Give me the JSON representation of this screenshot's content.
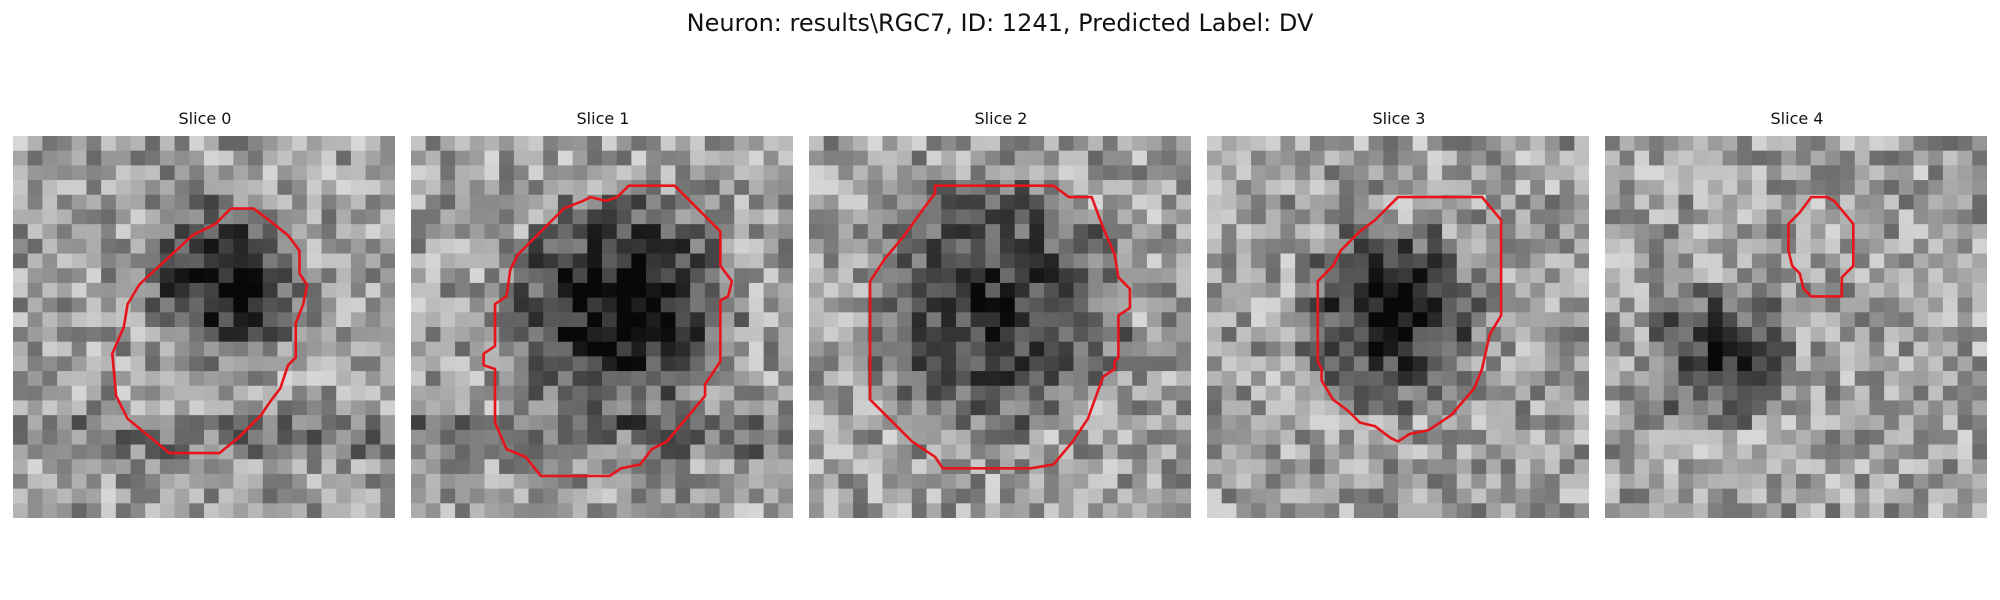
{
  "figure": {
    "title": "Neuron: results\\RGC7, ID: 1241, Predicted Label: DV"
  },
  "contour_color": "#e8141c",
  "panels": [
    {
      "title": "Slice 0",
      "seed": 11,
      "dark_center": [
        0.55,
        0.38
      ],
      "dark_radius": 0.22,
      "dark_strength": 0.65,
      "band": true,
      "contour": [
        [
          0.57,
          0.19
        ],
        [
          0.63,
          0.19
        ],
        [
          0.67,
          0.22
        ],
        [
          0.72,
          0.26
        ],
        [
          0.75,
          0.3
        ],
        [
          0.75,
          0.36
        ],
        [
          0.77,
          0.39
        ],
        [
          0.76,
          0.44
        ],
        [
          0.74,
          0.49
        ],
        [
          0.74,
          0.58
        ],
        [
          0.72,
          0.6
        ],
        [
          0.7,
          0.66
        ],
        [
          0.67,
          0.7
        ],
        [
          0.65,
          0.73
        ],
        [
          0.59,
          0.79
        ],
        [
          0.54,
          0.83
        ],
        [
          0.41,
          0.83
        ],
        [
          0.3,
          0.74
        ],
        [
          0.27,
          0.68
        ],
        [
          0.26,
          0.57
        ],
        [
          0.29,
          0.5
        ],
        [
          0.3,
          0.44
        ],
        [
          0.33,
          0.39
        ],
        [
          0.34,
          0.38
        ],
        [
          0.47,
          0.26
        ],
        [
          0.53,
          0.23
        ]
      ]
    },
    {
      "title": "Slice 1",
      "seed": 23,
      "dark_center": [
        0.55,
        0.45
      ],
      "dark_radius": 0.32,
      "dark_strength": 0.7,
      "band": true,
      "contour": [
        [
          0.57,
          0.13
        ],
        [
          0.69,
          0.13
        ],
        [
          0.75,
          0.19
        ],
        [
          0.81,
          0.25
        ],
        [
          0.81,
          0.34
        ],
        [
          0.84,
          0.38
        ],
        [
          0.83,
          0.42
        ],
        [
          0.81,
          0.43
        ],
        [
          0.81,
          0.59
        ],
        [
          0.77,
          0.65
        ],
        [
          0.77,
          0.68
        ],
        [
          0.72,
          0.74
        ],
        [
          0.67,
          0.8
        ],
        [
          0.63,
          0.82
        ],
        [
          0.6,
          0.86
        ],
        [
          0.55,
          0.87
        ],
        [
          0.52,
          0.89
        ],
        [
          0.34,
          0.89
        ],
        [
          0.3,
          0.84
        ],
        [
          0.25,
          0.82
        ],
        [
          0.22,
          0.75
        ],
        [
          0.22,
          0.61
        ],
        [
          0.19,
          0.6
        ],
        [
          0.19,
          0.57
        ],
        [
          0.22,
          0.55
        ],
        [
          0.22,
          0.44
        ],
        [
          0.25,
          0.42
        ],
        [
          0.26,
          0.35
        ],
        [
          0.28,
          0.31
        ],
        [
          0.34,
          0.25
        ],
        [
          0.4,
          0.19
        ],
        [
          0.45,
          0.17
        ],
        [
          0.47,
          0.16
        ],
        [
          0.51,
          0.17
        ],
        [
          0.54,
          0.16
        ]
      ]
    },
    {
      "title": "Slice 2",
      "seed": 37,
      "dark_center": [
        0.5,
        0.45
      ],
      "dark_radius": 0.36,
      "dark_strength": 0.45,
      "band": false,
      "contour": [
        [
          0.33,
          0.13
        ],
        [
          0.64,
          0.13
        ],
        [
          0.68,
          0.16
        ],
        [
          0.74,
          0.16
        ],
        [
          0.77,
          0.24
        ],
        [
          0.8,
          0.31
        ],
        [
          0.81,
          0.37
        ],
        [
          0.84,
          0.4
        ],
        [
          0.84,
          0.45
        ],
        [
          0.81,
          0.47
        ],
        [
          0.81,
          0.58
        ],
        [
          0.8,
          0.59
        ],
        [
          0.8,
          0.61
        ],
        [
          0.77,
          0.63
        ],
        [
          0.73,
          0.74
        ],
        [
          0.69,
          0.8
        ],
        [
          0.64,
          0.86
        ],
        [
          0.58,
          0.87
        ],
        [
          0.5,
          0.87
        ],
        [
          0.42,
          0.87
        ],
        [
          0.35,
          0.87
        ],
        [
          0.33,
          0.84
        ],
        [
          0.27,
          0.8
        ],
        [
          0.2,
          0.73
        ],
        [
          0.16,
          0.69
        ],
        [
          0.16,
          0.38
        ],
        [
          0.2,
          0.32
        ],
        [
          0.25,
          0.26
        ],
        [
          0.3,
          0.19
        ],
        [
          0.33,
          0.15
        ]
      ]
    },
    {
      "title": "Slice 3",
      "seed": 53,
      "dark_center": [
        0.48,
        0.47
      ],
      "dark_radius": 0.26,
      "dark_strength": 0.65,
      "band": false,
      "contour": [
        [
          0.5,
          0.16
        ],
        [
          0.72,
          0.16
        ],
        [
          0.77,
          0.22
        ],
        [
          0.77,
          0.47
        ],
        [
          0.74,
          0.52
        ],
        [
          0.72,
          0.61
        ],
        [
          0.7,
          0.66
        ],
        [
          0.64,
          0.73
        ],
        [
          0.58,
          0.77
        ],
        [
          0.53,
          0.78
        ],
        [
          0.5,
          0.8
        ],
        [
          0.48,
          0.79
        ],
        [
          0.44,
          0.76
        ],
        [
          0.4,
          0.75
        ],
        [
          0.37,
          0.72
        ],
        [
          0.33,
          0.69
        ],
        [
          0.3,
          0.64
        ],
        [
          0.3,
          0.61
        ],
        [
          0.29,
          0.59
        ],
        [
          0.29,
          0.38
        ],
        [
          0.32,
          0.35
        ],
        [
          0.33,
          0.34
        ],
        [
          0.35,
          0.3
        ],
        [
          0.4,
          0.25
        ],
        [
          0.44,
          0.22
        ]
      ]
    },
    {
      "title": "Slice 4",
      "seed": 71,
      "dark_center": [
        0.3,
        0.57
      ],
      "dark_radius": 0.2,
      "dark_strength": 0.45,
      "band": false,
      "contour": [
        [
          0.54,
          0.16
        ],
        [
          0.58,
          0.16
        ],
        [
          0.6,
          0.17
        ],
        [
          0.65,
          0.23
        ],
        [
          0.65,
          0.34
        ],
        [
          0.62,
          0.37
        ],
        [
          0.62,
          0.42
        ],
        [
          0.58,
          0.42
        ],
        [
          0.54,
          0.42
        ],
        [
          0.52,
          0.4
        ],
        [
          0.51,
          0.36
        ],
        [
          0.49,
          0.34
        ],
        [
          0.48,
          0.3
        ],
        [
          0.48,
          0.23
        ],
        [
          0.51,
          0.2
        ]
      ]
    }
  ]
}
